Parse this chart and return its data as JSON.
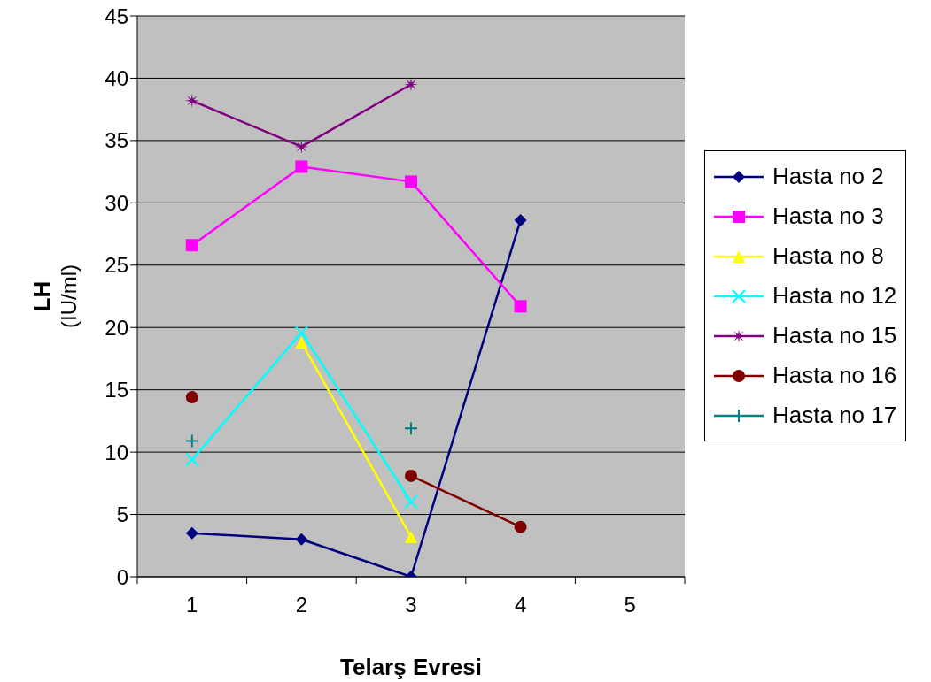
{
  "chart_data": {
    "type": "line",
    "xlabel": "Telarş Evresi",
    "ylabel": "LH (IU/ml)",
    "categories": [
      "1",
      "2",
      "3",
      "4",
      "5"
    ],
    "ylim": [
      0,
      45
    ],
    "yticks": [
      0,
      5,
      10,
      15,
      20,
      25,
      30,
      35,
      40,
      45
    ],
    "grid": "y",
    "legend": "right",
    "series": [
      {
        "name": "Hasta no 2",
        "color": "#000080",
        "marker": "diamond",
        "values": [
          3.5,
          3.0,
          0,
          28.6,
          null
        ]
      },
      {
        "name": "Hasta no 3",
        "color": "#ff00ff",
        "marker": "square",
        "values": [
          26.6,
          32.9,
          31.7,
          21.7,
          null
        ]
      },
      {
        "name": "Hasta no 8",
        "color": "#ffff00",
        "marker": "triangle",
        "values": [
          null,
          18.8,
          3.2,
          null,
          null
        ]
      },
      {
        "name": "Hasta no 12",
        "color": "#00ffff",
        "marker": "cross",
        "values": [
          9.4,
          19.6,
          6.0,
          null,
          null
        ]
      },
      {
        "name": "Hasta no 15",
        "color": "#800080",
        "marker": "star",
        "values": [
          38.2,
          34.5,
          39.5,
          null,
          null
        ]
      },
      {
        "name": "Hasta no 16",
        "color": "#800000",
        "marker": "circle",
        "values": [
          14.4,
          null,
          8.1,
          4.0,
          null
        ]
      },
      {
        "name": "Hasta no 17",
        "type": "scatter",
        "color": "#008080",
        "values": [
          10.9,
          null,
          11.9,
          null,
          null
        ]
      }
    ]
  }
}
